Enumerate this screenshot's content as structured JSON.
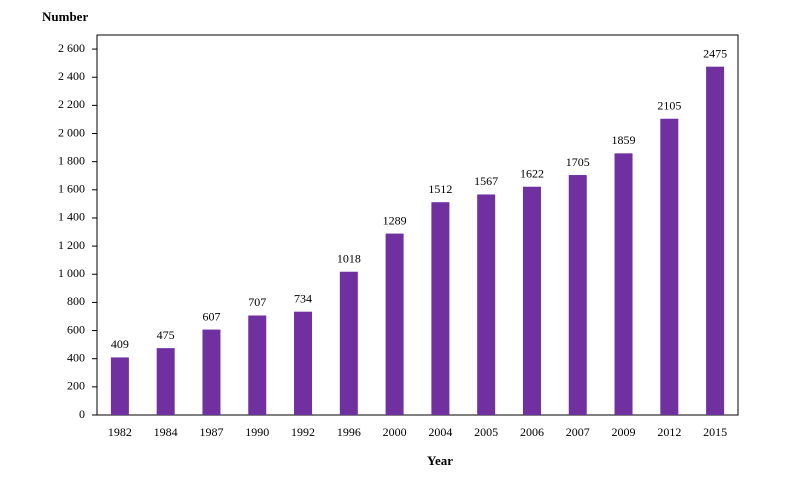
{
  "chart_data": {
    "type": "bar",
    "y_axis_title": "Number",
    "x_axis_title": "Year",
    "categories": [
      "1982",
      "1984",
      "1987",
      "1990",
      "1992",
      "1996",
      "2000",
      "2004",
      "2005",
      "2006",
      "2007",
      "2009",
      "2012",
      "2015"
    ],
    "values": [
      409,
      475,
      607,
      707,
      734,
      1018,
      1289,
      1512,
      1567,
      1622,
      1705,
      1859,
      2105,
      2475
    ],
    "color": "#7030a0",
    "ylim": [
      0,
      2700
    ],
    "yticks": [
      0,
      200,
      400,
      600,
      800,
      {
        "value": 1000,
        "label": "1 000"
      },
      {
        "value": 1200,
        "label": "1 200"
      },
      {
        "value": 1400,
        "label": "1 400"
      },
      {
        "value": 1600,
        "label": "1 600"
      },
      {
        "value": 1800,
        "label": "1 800"
      },
      {
        "value": 2000,
        "label": "2 000"
      },
      {
        "value": 2200,
        "label": "2 200"
      },
      {
        "value": 2400,
        "label": "2 400"
      },
      {
        "value": 2600,
        "label": "2 600"
      }
    ],
    "grid": false
  }
}
